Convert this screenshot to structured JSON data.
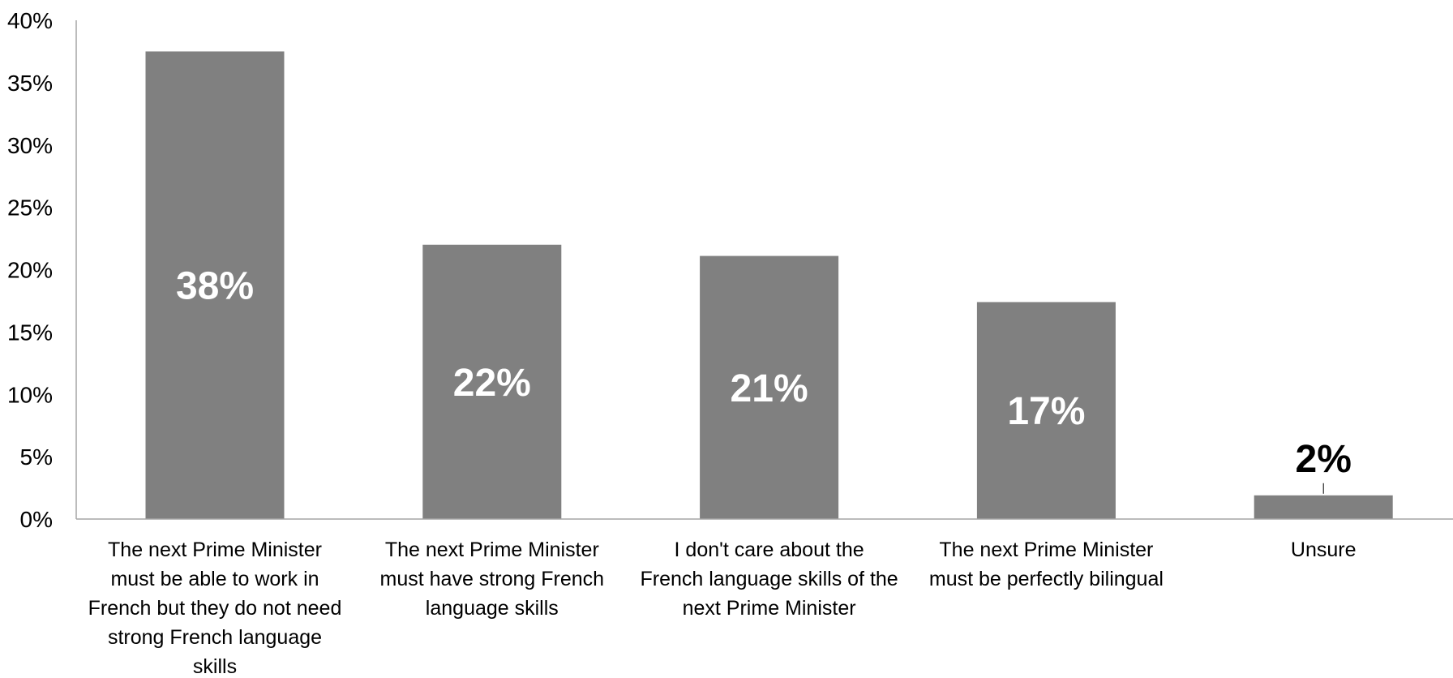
{
  "chart_data": {
    "type": "bar",
    "categories": [
      "The next Prime Minister must be able to work in French but they do not need strong French language skills",
      "The next Prime Minister must have strong French language skills",
      "I don't care about the French language skills of the next Prime Minister",
      "The next Prime Minister must be perfectly bilingual",
      "Unsure"
    ],
    "category_lines": [
      [
        "The next Prime Minister",
        "must be able to work in",
        "French but they do not need",
        "strong French language",
        "skills"
      ],
      [
        "The next Prime Minister",
        "must have strong French",
        "language skills"
      ],
      [
        "I don't care about the",
        "French language skills of the",
        "next Prime Minister"
      ],
      [
        "The next Prime Minister",
        "must be perfectly bilingual"
      ],
      [
        "Unsure"
      ]
    ],
    "values": [
      37.5,
      22,
      21.1,
      17.4,
      1.9
    ],
    "data_labels": [
      "38%",
      "22%",
      "21%",
      "17%",
      "2%"
    ],
    "ylim": [
      0,
      40
    ],
    "yticks": [
      0,
      5,
      10,
      15,
      20,
      25,
      30,
      35,
      40
    ],
    "ytick_labels": [
      "0%",
      "5%",
      "10%",
      "15%",
      "20%",
      "25%",
      "30%",
      "35%",
      "40%"
    ],
    "title": "",
    "xlabel": "",
    "ylabel": "",
    "grid": false,
    "colors": {
      "bar": "#808080",
      "axis": "#a6a6a6",
      "label_inside": "#ffffff",
      "label_outside": "#000000"
    }
  }
}
